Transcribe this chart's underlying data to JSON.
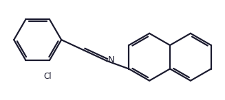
{
  "background_color": "#ffffff",
  "line_color": "#1a1a2e",
  "line_width": 1.6,
  "dbo": 0.055,
  "font_size_Cl": 8.5,
  "font_size_N": 9.5,
  "label_N": "N",
  "label_Cl": "Cl",
  "figsize": [
    3.27,
    1.46
  ],
  "dpi": 100,
  "r": 0.62
}
